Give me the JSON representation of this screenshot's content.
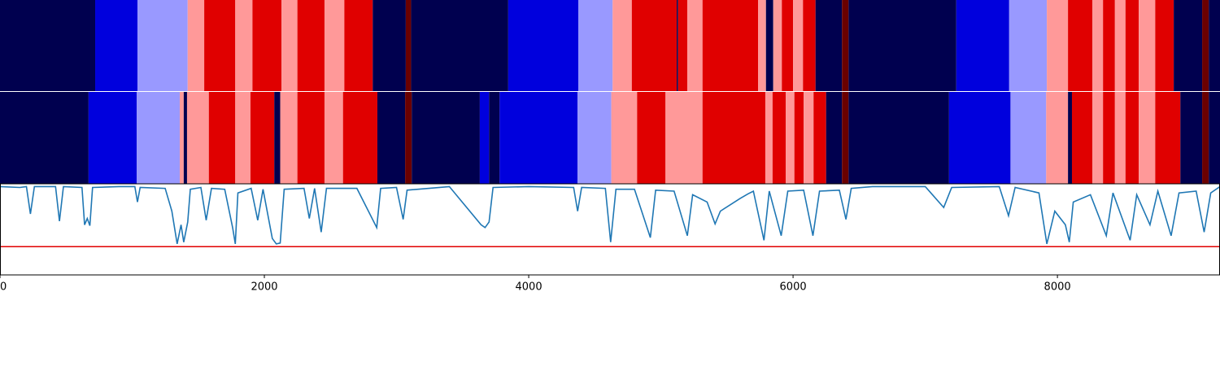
{
  "chart_data": [
    {
      "type": "band",
      "xlim": [
        0,
        9230
      ],
      "edges": [
        0,
        720,
        1040,
        1420,
        1545,
        1780,
        1910,
        2130,
        2250,
        2455,
        2605,
        2820,
        3070,
        3110,
        3845,
        4375,
        4635,
        4780,
        5120,
        5130,
        5200,
        5315,
        5735,
        5795,
        5850,
        5915,
        6000,
        6075,
        6170,
        6370,
        6420,
        7235,
        7635,
        7920,
        8080,
        8265,
        8345,
        8435,
        8515,
        8615,
        8740,
        8880,
        9095,
        9145,
        9230
      ],
      "colors": [
        "#00004f",
        "#0000dd",
        "#9999ff",
        "#ff9999",
        "#e00000",
        "#ff9999",
        "#e00000",
        "#ff9999",
        "#e00000",
        "#ff9999",
        "#e00000",
        "#00004f",
        "#6b0000",
        "#00004f",
        "#0000dd",
        "#9999ff",
        "#ff9999",
        "#e00000",
        "#00004f",
        "#e00000",
        "#ff9999",
        "#e00000",
        "#ff9999",
        "#00004f",
        "#ff9999",
        "#e00000",
        "#ff9999",
        "#e00000",
        "#00004f",
        "#6b0000",
        "#00004f",
        "#0000dd",
        "#9999ff",
        "#ff9999",
        "#e00000",
        "#ff9999",
        "#e00000",
        "#ff9999",
        "#e00000",
        "#ff9999",
        "#e00000",
        "#00004f",
        "#6b0000",
        "#00004f"
      ]
    },
    {
      "type": "band",
      "xlim": [
        0,
        9230
      ],
      "edges": [
        0,
        670,
        1035,
        1360,
        1390,
        1415,
        1580,
        1780,
        1895,
        2075,
        2120,
        2250,
        2455,
        2595,
        2855,
        3065,
        3115,
        3630,
        3700,
        3780,
        4370,
        4625,
        4820,
        5035,
        5315,
        5790,
        5845,
        5945,
        6010,
        6080,
        6155,
        6250,
        6370,
        6420,
        7180,
        7645,
        7915,
        8080,
        8110,
        8265,
        8345,
        8435,
        8515,
        8615,
        8740,
        8930,
        9095,
        9145,
        9230
      ],
      "colors": [
        "#00004f",
        "#0000dd",
        "#9999ff",
        "#ff9999",
        "#00004f",
        "#ff9999",
        "#e00000",
        "#ff9999",
        "#e00000",
        "#00004f",
        "#ff9999",
        "#e00000",
        "#ff9999",
        "#e00000",
        "#00004f",
        "#6b0000",
        "#00004f",
        "#0000dd",
        "#00004f",
        "#0000dd",
        "#9999ff",
        "#ff9999",
        "#e00000",
        "#ff9999",
        "#e00000",
        "#ff9999",
        "#e00000",
        "#ff9999",
        "#e00000",
        "#ff9999",
        "#e00000",
        "#00004f",
        "#6b0000",
        "#00004f",
        "#0000dd",
        "#9999ff",
        "#ff9999",
        "#00004f",
        "#e00000",
        "#ff9999",
        "#e00000",
        "#ff9999",
        "#e00000",
        "#ff9999",
        "#e00000",
        "#00004f",
        "#6b0000",
        "#00004f"
      ]
    },
    {
      "type": "line",
      "xlim": [
        0,
        9230
      ],
      "ylim": [
        0,
        1
      ],
      "xticks": [
        0,
        2000,
        4000,
        6000,
        8000
      ],
      "color": "#1f77b4",
      "threshold": {
        "value": 0.31,
        "color": "#e00000"
      },
      "x": [
        0,
        150,
        200,
        230,
        260,
        420,
        450,
        480,
        620,
        640,
        660,
        680,
        700,
        900,
        1020,
        1040,
        1060,
        1250,
        1300,
        1340,
        1370,
        1390,
        1420,
        1440,
        1520,
        1560,
        1600,
        1700,
        1760,
        1780,
        1800,
        1900,
        1950,
        1990,
        2060,
        2090,
        2120,
        2150,
        2300,
        2340,
        2380,
        2430,
        2470,
        2700,
        2850,
        2880,
        3000,
        3050,
        3080,
        3400,
        3640,
        3670,
        3700,
        3730,
        4000,
        4340,
        4370,
        4400,
        4580,
        4620,
        4660,
        4800,
        4920,
        4960,
        5100,
        5200,
        5240,
        5350,
        5410,
        5450,
        5600,
        5660,
        5700,
        5780,
        5820,
        5910,
        5960,
        6080,
        6150,
        6200,
        6350,
        6400,
        6440,
        6600,
        7000,
        7140,
        7200,
        7560,
        7630,
        7680,
        7860,
        7920,
        7980,
        8060,
        8090,
        8120,
        8250,
        8370,
        8420,
        8550,
        8600,
        8700,
        8760,
        8860,
        8920,
        9050,
        9110,
        9160,
        9230
      ],
      "values": [
        0.97,
        0.96,
        0.97,
        0.67,
        0.97,
        0.97,
        0.59,
        0.97,
        0.96,
        0.55,
        0.62,
        0.54,
        0.96,
        0.97,
        0.97,
        0.8,
        0.96,
        0.95,
        0.7,
        0.34,
        0.55,
        0.36,
        0.58,
        0.94,
        0.96,
        0.6,
        0.95,
        0.94,
        0.52,
        0.34,
        0.9,
        0.95,
        0.6,
        0.94,
        0.4,
        0.34,
        0.35,
        0.94,
        0.95,
        0.62,
        0.95,
        0.47,
        0.95,
        0.95,
        0.52,
        0.95,
        0.96,
        0.61,
        0.93,
        0.97,
        0.55,
        0.52,
        0.58,
        0.96,
        0.97,
        0.96,
        0.7,
        0.96,
        0.95,
        0.36,
        0.94,
        0.94,
        0.41,
        0.93,
        0.92,
        0.43,
        0.88,
        0.8,
        0.56,
        0.7,
        0.84,
        0.89,
        0.92,
        0.38,
        0.92,
        0.43,
        0.92,
        0.93,
        0.43,
        0.92,
        0.93,
        0.61,
        0.95,
        0.97,
        0.97,
        0.74,
        0.96,
        0.97,
        0.65,
        0.96,
        0.9,
        0.34,
        0.7,
        0.55,
        0.36,
        0.8,
        0.88,
        0.43,
        0.9,
        0.38,
        0.88,
        0.55,
        0.92,
        0.43,
        0.9,
        0.92,
        0.47,
        0.9,
        0.97
      ]
    }
  ]
}
